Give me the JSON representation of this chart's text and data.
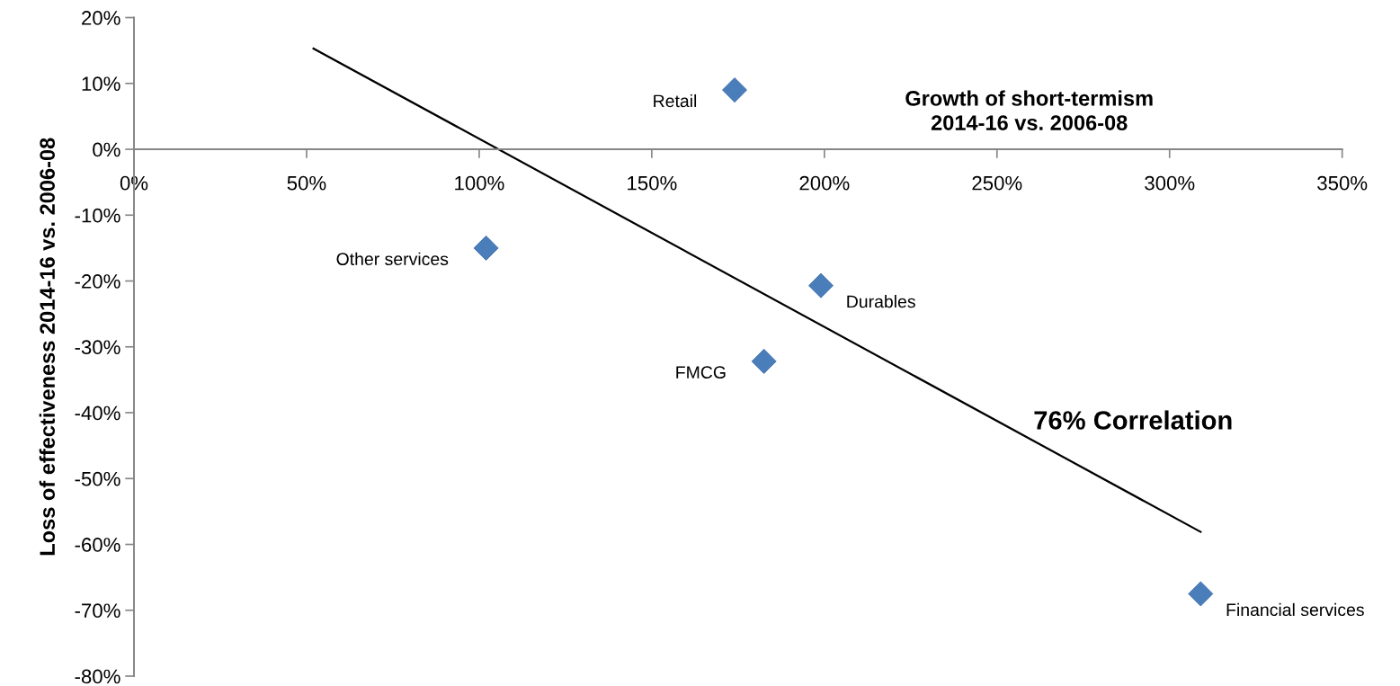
{
  "chart_data": {
    "type": "scatter",
    "xlabel": "Growth of short-termism\n2014-16 vs. 2006-08",
    "ylabel": "Loss of effectiveness 2014-16 vs. 2006-08",
    "series": [
      {
        "color": "#4a7ebb",
        "marker": "diamond",
        "x": [
          174,
          102,
          199,
          182.5,
          309
        ],
        "values": [
          9,
          -15,
          -20.7,
          -32.2,
          -67.5
        ]
      },
      {
        "type": "line",
        "marker": "none",
        "color": "#000000",
        "x": [
          52,
          309
        ],
        "values": [
          15.3,
          -58.1
        ]
      }
    ],
    "xlim": [
      0,
      350
    ],
    "ylim": [
      -80,
      20
    ],
    "xticks": [
      {
        "value": 0,
        "label": "0%"
      },
      {
        "value": 50,
        "label": "50%"
      },
      {
        "value": 100,
        "label": "100%"
      },
      {
        "value": 150,
        "label": "150%"
      },
      {
        "value": 200,
        "label": "200%"
      },
      {
        "value": 250,
        "label": "250%"
      },
      {
        "value": 300,
        "label": "300%"
      },
      {
        "value": 350,
        "label": "350%"
      }
    ],
    "yticks": [
      {
        "value": 20,
        "label": "20%"
      },
      {
        "value": 10,
        "label": "10%"
      },
      {
        "value": 0,
        "label": "0%"
      },
      {
        "value": -10,
        "label": "-10%"
      },
      {
        "value": -20,
        "label": "-20%"
      },
      {
        "value": -30,
        "label": "-30%"
      },
      {
        "value": -40,
        "label": "-40%"
      },
      {
        "value": -50,
        "label": "-50%"
      },
      {
        "value": -60,
        "label": "-60%"
      },
      {
        "value": -70,
        "label": "-70%"
      },
      {
        "value": -80,
        "label": "-80%"
      }
    ],
    "grid": false,
    "legend": false,
    "annotations": [
      {
        "text": "Retail",
        "x": 174,
        "y": 9
      },
      {
        "text": "Other services",
        "x": 102,
        "y": -15
      },
      {
        "text": "Durables",
        "x": 199,
        "y": -20.7
      },
      {
        "text": "FMCG",
        "x": 182.5,
        "y": -32.2
      },
      {
        "text": "Financial services",
        "x": 309,
        "y": -67.5
      },
      "76% Correlation"
    ]
  }
}
